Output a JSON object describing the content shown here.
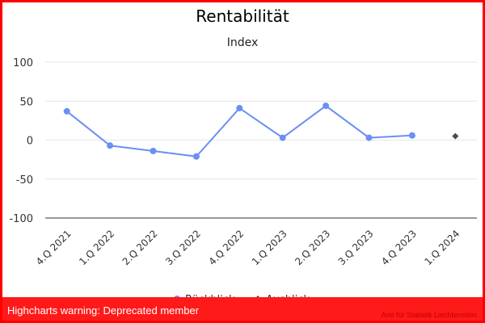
{
  "chart_data": {
    "type": "line",
    "title": "Rentabilität",
    "subtitle": "Index",
    "xlabel": "",
    "ylabel": "",
    "categories": [
      "4.Q 2021",
      "1.Q 2022",
      "2.Q 2022",
      "3.Q 2022",
      "4.Q 2022",
      "1.Q 2023",
      "2.Q 2023",
      "3.Q 2023",
      "4.Q 2023",
      "1.Q 2024"
    ],
    "ylim": [
      -100,
      100
    ],
    "yticks": [
      100,
      50,
      0,
      -50,
      -100
    ],
    "grid": true,
    "legend_position": "bottom-center",
    "series": [
      {
        "name": "Rückblick",
        "color": "#6b8ff5",
        "marker": "circle",
        "values": [
          37,
          -7,
          -14,
          -21,
          41,
          3,
          44,
          3,
          6,
          null
        ]
      },
      {
        "name": "Ausblick",
        "color": "#4a4a4a",
        "marker": "diamond",
        "values": [
          null,
          null,
          null,
          null,
          null,
          null,
          null,
          null,
          null,
          5
        ]
      }
    ]
  },
  "warning": {
    "text": "Highcharts warning: Deprecated member"
  },
  "credits": {
    "text": "Amt für Statistik Liechtenstein"
  }
}
